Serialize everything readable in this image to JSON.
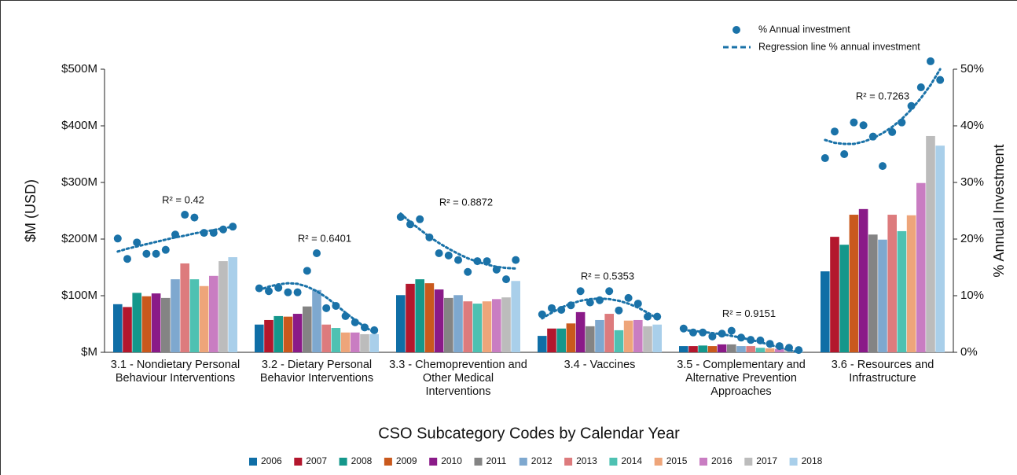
{
  "chart_data": {
    "type": "bar",
    "x_label": "CSO Subcategory Codes by Calendar Year",
    "y_label": "$M (USD)",
    "y2_label": "% Annual Investment",
    "categories": [
      "3.1 - Nondietary Personal Behaviour Interventions",
      "3.2 - Dietary Personal Behavior Interventions",
      "3.3 - Chemoprevention and Other Medical Interventions",
      "3.4 - Vaccines",
      "3.5 - Complementary and Alternative Prevention Approaches",
      "3.6 - Resources and Infrastructure"
    ],
    "ylim": [
      0,
      500
    ],
    "yticks": [
      {
        "value": 0,
        "label": "$M"
      },
      {
        "value": 100,
        "label": "$100M"
      },
      {
        "value": 200,
        "label": "$200M"
      },
      {
        "value": 300,
        "label": "$300M"
      },
      {
        "value": 400,
        "label": "$400M"
      },
      {
        "value": 500,
        "label": "$500M"
      }
    ],
    "y2lim": [
      0,
      50
    ],
    "y2ticks": [
      {
        "value": 0,
        "label": "0%"
      },
      {
        "value": 10,
        "label": "10%"
      },
      {
        "value": 20,
        "label": "20%"
      },
      {
        "value": 30,
        "label": "30%"
      },
      {
        "value": 40,
        "label": "40%"
      },
      {
        "value": 50,
        "label": "50%"
      }
    ],
    "series": [
      {
        "name": "2006",
        "color": "#0f6ea6",
        "values": [
          85,
          49,
          101,
          29,
          11,
          143
        ]
      },
      {
        "name": "2007",
        "color": "#b3172d",
        "values": [
          80,
          57,
          121,
          42,
          11,
          204
        ]
      },
      {
        "name": "2008",
        "color": "#14978b",
        "values": [
          105,
          64,
          129,
          42,
          12,
          190
        ]
      },
      {
        "name": "2009",
        "color": "#c9591d",
        "values": [
          99,
          63,
          122,
          51,
          11,
          243
        ]
      },
      {
        "name": "2010",
        "color": "#8a1a88",
        "values": [
          104,
          68,
          111,
          71,
          14,
          253
        ]
      },
      {
        "name": "2011",
        "color": "#848484",
        "values": [
          96,
          81,
          96,
          46,
          14,
          208
        ]
      },
      {
        "name": "2012",
        "color": "#7ea8cf",
        "values": [
          129,
          110,
          101,
          57,
          11,
          199
        ]
      },
      {
        "name": "2013",
        "color": "#dd7b7d",
        "values": [
          157,
          49,
          90,
          68,
          11,
          243
        ]
      },
      {
        "name": "2014",
        "color": "#4ec1b2",
        "values": [
          129,
          43,
          86,
          39,
          8,
          214
        ]
      },
      {
        "name": "2015",
        "color": "#eea57a",
        "values": [
          117,
          35,
          90,
          56,
          7,
          242
        ]
      },
      {
        "name": "2016",
        "color": "#c97dc2",
        "values": [
          135,
          35,
          94,
          57,
          6,
          299
        ]
      },
      {
        "name": "2017",
        "color": "#bcbcbc",
        "values": [
          161,
          32,
          97,
          46,
          4,
          382
        ]
      },
      {
        "name": "2018",
        "color": "#a9cfea",
        "values": [
          168,
          32,
          126,
          49,
          3,
          365
        ]
      }
    ],
    "overlays": [
      {
        "name": "% Annual investment",
        "type": "scatter",
        "axis": "y2",
        "color": "#1a72a8",
        "values": [
          [
            20.1,
            16.5,
            19.4,
            17.4,
            17.4,
            18.1,
            20.8,
            24.3,
            23.8,
            21.1,
            21.1,
            21.7,
            22.2
          ],
          [
            11.3,
            10.8,
            11.4,
            10.6,
            10.6,
            14.4,
            17.5,
            7.8,
            8.2,
            6.4,
            5.3,
            4.4,
            3.9
          ],
          [
            23.9,
            22.6,
            23.5,
            20.3,
            17.5,
            17.1,
            16.3,
            14.2,
            16.1,
            16.1,
            14.6,
            12.9,
            16.3
          ],
          [
            6.7,
            7.8,
            7.5,
            8.3,
            10.8,
            8.8,
            9.2,
            10.8,
            7.4,
            9.6,
            8.6,
            6.3,
            6.3
          ],
          [
            4.2,
            3.5,
            3.5,
            2.8,
            3.3,
            3.8,
            2.6,
            2.2,
            2.1,
            1.5,
            1.1,
            0.8,
            0.4
          ],
          [
            34.3,
            39.0,
            35.0,
            40.6,
            40.1,
            38.1,
            32.9,
            38.9,
            40.6,
            43.5,
            46.8,
            51.4,
            48.1
          ]
        ]
      },
      {
        "name": "Regression line % annual investment",
        "type": "line",
        "axis": "y2",
        "color": "#1a72a8",
        "dashed": true,
        "values": [
          [
            17.8,
            18.3,
            18.7,
            19.1,
            19.5,
            19.9,
            20.3,
            20.6,
            21.0,
            21.3,
            21.6,
            21.9,
            22.2
          ],
          [
            11.0,
            11.6,
            12.0,
            12.2,
            12.1,
            11.6,
            10.8,
            9.7,
            8.4,
            7.0,
            5.7,
            4.5,
            3.5
          ],
          [
            24.5,
            23.0,
            21.7,
            20.4,
            19.3,
            18.3,
            17.4,
            16.6,
            16.0,
            15.5,
            15.1,
            14.9,
            14.8
          ],
          [
            6.0,
            7.0,
            7.9,
            8.6,
            9.1,
            9.4,
            9.5,
            9.4,
            9.1,
            8.6,
            7.9,
            7.0,
            6.0
          ],
          [
            3.9,
            3.8,
            3.6,
            3.4,
            3.2,
            2.9,
            2.6,
            2.2,
            1.8,
            1.3,
            0.9,
            0.4,
            0.0
          ],
          [
            37.5,
            37.0,
            36.8,
            36.8,
            37.2,
            37.8,
            38.7,
            39.8,
            41.2,
            42.9,
            44.9,
            47.2,
            50.0
          ]
        ]
      }
    ],
    "annotations": [
      "R² = 0.42",
      "R² = 0.6401",
      "R² = 0.8872",
      "R² = 0.5353",
      "R² = 0.9151",
      "R² = 0.7263"
    ]
  }
}
